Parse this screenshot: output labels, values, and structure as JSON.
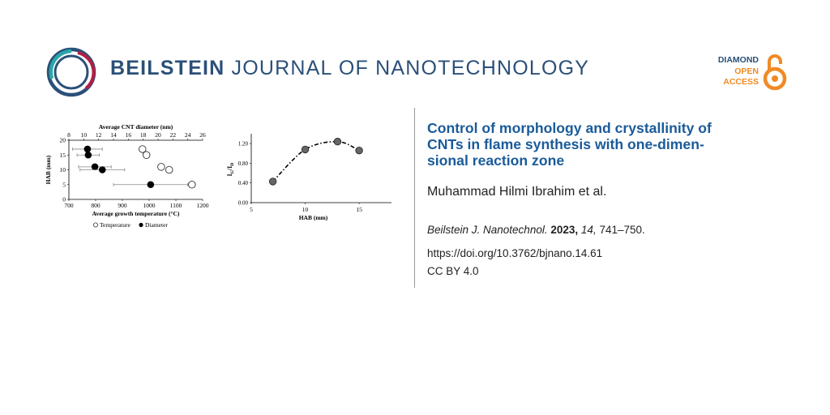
{
  "header": {
    "journal_bold": "BEILSTEIN",
    "journal_rest": "JOURNAL OF NANOTECHNOLOGY",
    "oa_line1": "DIAMOND",
    "oa_line2": "OPEN",
    "oa_line3": "ACCESS",
    "logo_icon": "beilstein-ring-logo",
    "oa_icon": "open-access-lock",
    "brand_color": "#2b5079",
    "oa_color": "#f08a24"
  },
  "article": {
    "title": "Control of morphology and crystallinity of CNTs in flame synthesis with one-dimen-sional reaction zone",
    "title_line1": "Control of morphology and crystallinity of",
    "title_line2": "CNTs in flame synthesis with one-dimen-",
    "title_line3": "sional reaction zone",
    "authors": "Muhammad Hilmi Ibrahim et al.",
    "citation_journal": "Beilstein J. Nanotechnol.",
    "citation_year": "2023,",
    "citation_volume": "14,",
    "citation_pages": "741–750.",
    "doi": "https://doi.org/10.3762/bjnano.14.61",
    "license": "CC BY 4.0",
    "title_color": "#1a5b9a"
  },
  "chart_data": [
    {
      "type": "scatter",
      "title": "",
      "xlabel": "Average growth temperature (°C)",
      "x2label": "Average CNT diameter (nm)",
      "ylabel": "HAB (mm)",
      "xlim": [
        700,
        1200
      ],
      "x2lim": [
        8,
        26
      ],
      "ylim": [
        0,
        20
      ],
      "x_ticks": [
        "700",
        "800",
        "900",
        "1000",
        "1100",
        "1200"
      ],
      "x2_ticks": [
        "8",
        "10",
        "12",
        "14",
        "16",
        "18",
        "20",
        "22",
        "24",
        "26"
      ],
      "y_ticks": [
        "0",
        "5",
        "10",
        "15",
        "20"
      ],
      "legend_temperature": "Temperature",
      "legend_diameter": "Diameter",
      "series": [
        {
          "name": "Temperature",
          "marker": "open-circle",
          "points": [
            [
              1160,
              5
            ],
            [
              1075,
              10
            ],
            [
              1045,
              11
            ],
            [
              975,
              17
            ],
            [
              990,
              15
            ]
          ]
        },
        {
          "name": "Diameter",
          "marker": "filled-circle",
          "axis": "x2",
          "points": [
            [
              10.5,
              17
            ],
            [
              10.6,
              15
            ],
            [
              11.5,
              11
            ],
            [
              12.5,
              10
            ],
            [
              19,
              5
            ]
          ],
          "xerr": [
            2,
            1.5,
            2.2,
            3,
            5
          ]
        }
      ]
    },
    {
      "type": "line",
      "title": "",
      "xlabel": "HAB (mm)",
      "ylabel": "IG/ID",
      "ylabel_main": "I",
      "ylabel_sub1": "G",
      "ylabel_sep": "/I",
      "ylabel_sub2": "D",
      "xlim": [
        5,
        18
      ],
      "ylim": [
        0,
        1.4
      ],
      "x_ticks": [
        "5",
        "10",
        "15"
      ],
      "y_ticks": [
        "0.00",
        "0.40",
        "0.80",
        "1.20"
      ],
      "x": [
        7,
        10,
        13,
        15
      ],
      "values": [
        0.43,
        1.08,
        1.24,
        1.06
      ],
      "line_style": "dash-dot"
    }
  ]
}
